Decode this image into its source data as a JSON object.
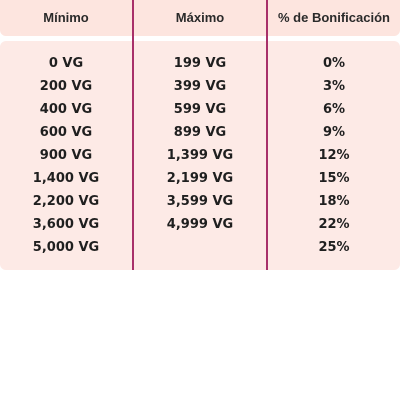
{
  "table": {
    "headers": {
      "min": "Mínimo",
      "max": "Máximo",
      "bonus": "% de Bonificación"
    },
    "rows": [
      {
        "min": "0 VG",
        "max": "199 VG",
        "bonus": "0%"
      },
      {
        "min": "200 VG",
        "max": "399 VG",
        "bonus": "3%"
      },
      {
        "min": "400 VG",
        "max": "599 VG",
        "bonus": "6%"
      },
      {
        "min": "600 VG",
        "max": "899 VG",
        "bonus": "9%"
      },
      {
        "min": "900 VG",
        "max": "1,399 VG",
        "bonus": "12%"
      },
      {
        "min": "1,400 VG",
        "max": "2,199 VG",
        "bonus": "15%"
      },
      {
        "min": "2,200 VG",
        "max": "3,599 VG",
        "bonus": "18%"
      },
      {
        "min": "3,600 VG",
        "max": "4,999 VG",
        "bonus": "22%"
      },
      {
        "min": "5,000 VG",
        "max": "",
        "bonus": "25%"
      }
    ]
  },
  "colors": {
    "header_bg": "#fde5df",
    "body_bg": "#fdeae6",
    "divider": "#a8306a"
  }
}
